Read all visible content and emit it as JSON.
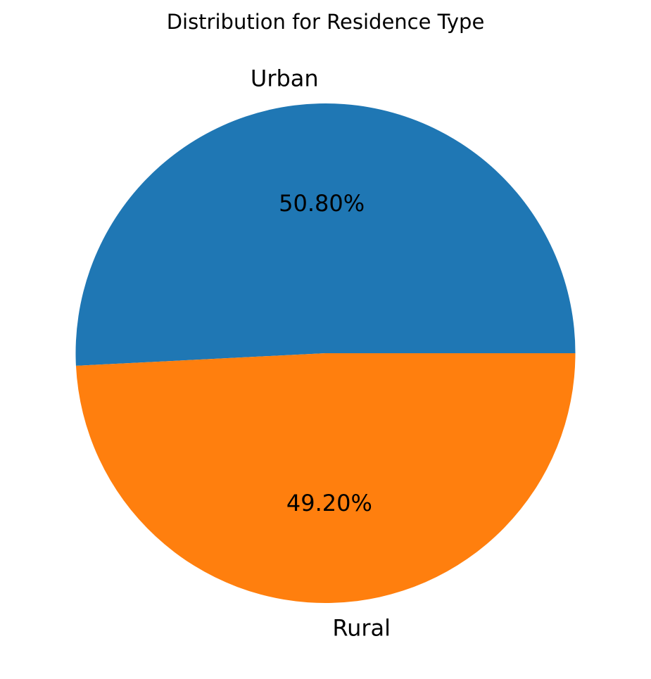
{
  "chart_data": {
    "type": "pie",
    "title": "Distribution for Residence Type",
    "categories": [
      "Urban",
      "Rural"
    ],
    "values": [
      50.8,
      49.2
    ],
    "percent_labels": [
      "50.80%",
      "49.20%"
    ],
    "colors": [
      "#1f77b4",
      "#ff7f0e"
    ],
    "start_angle_deg": 0,
    "direction": "counterclockwise",
    "legend": "none"
  }
}
